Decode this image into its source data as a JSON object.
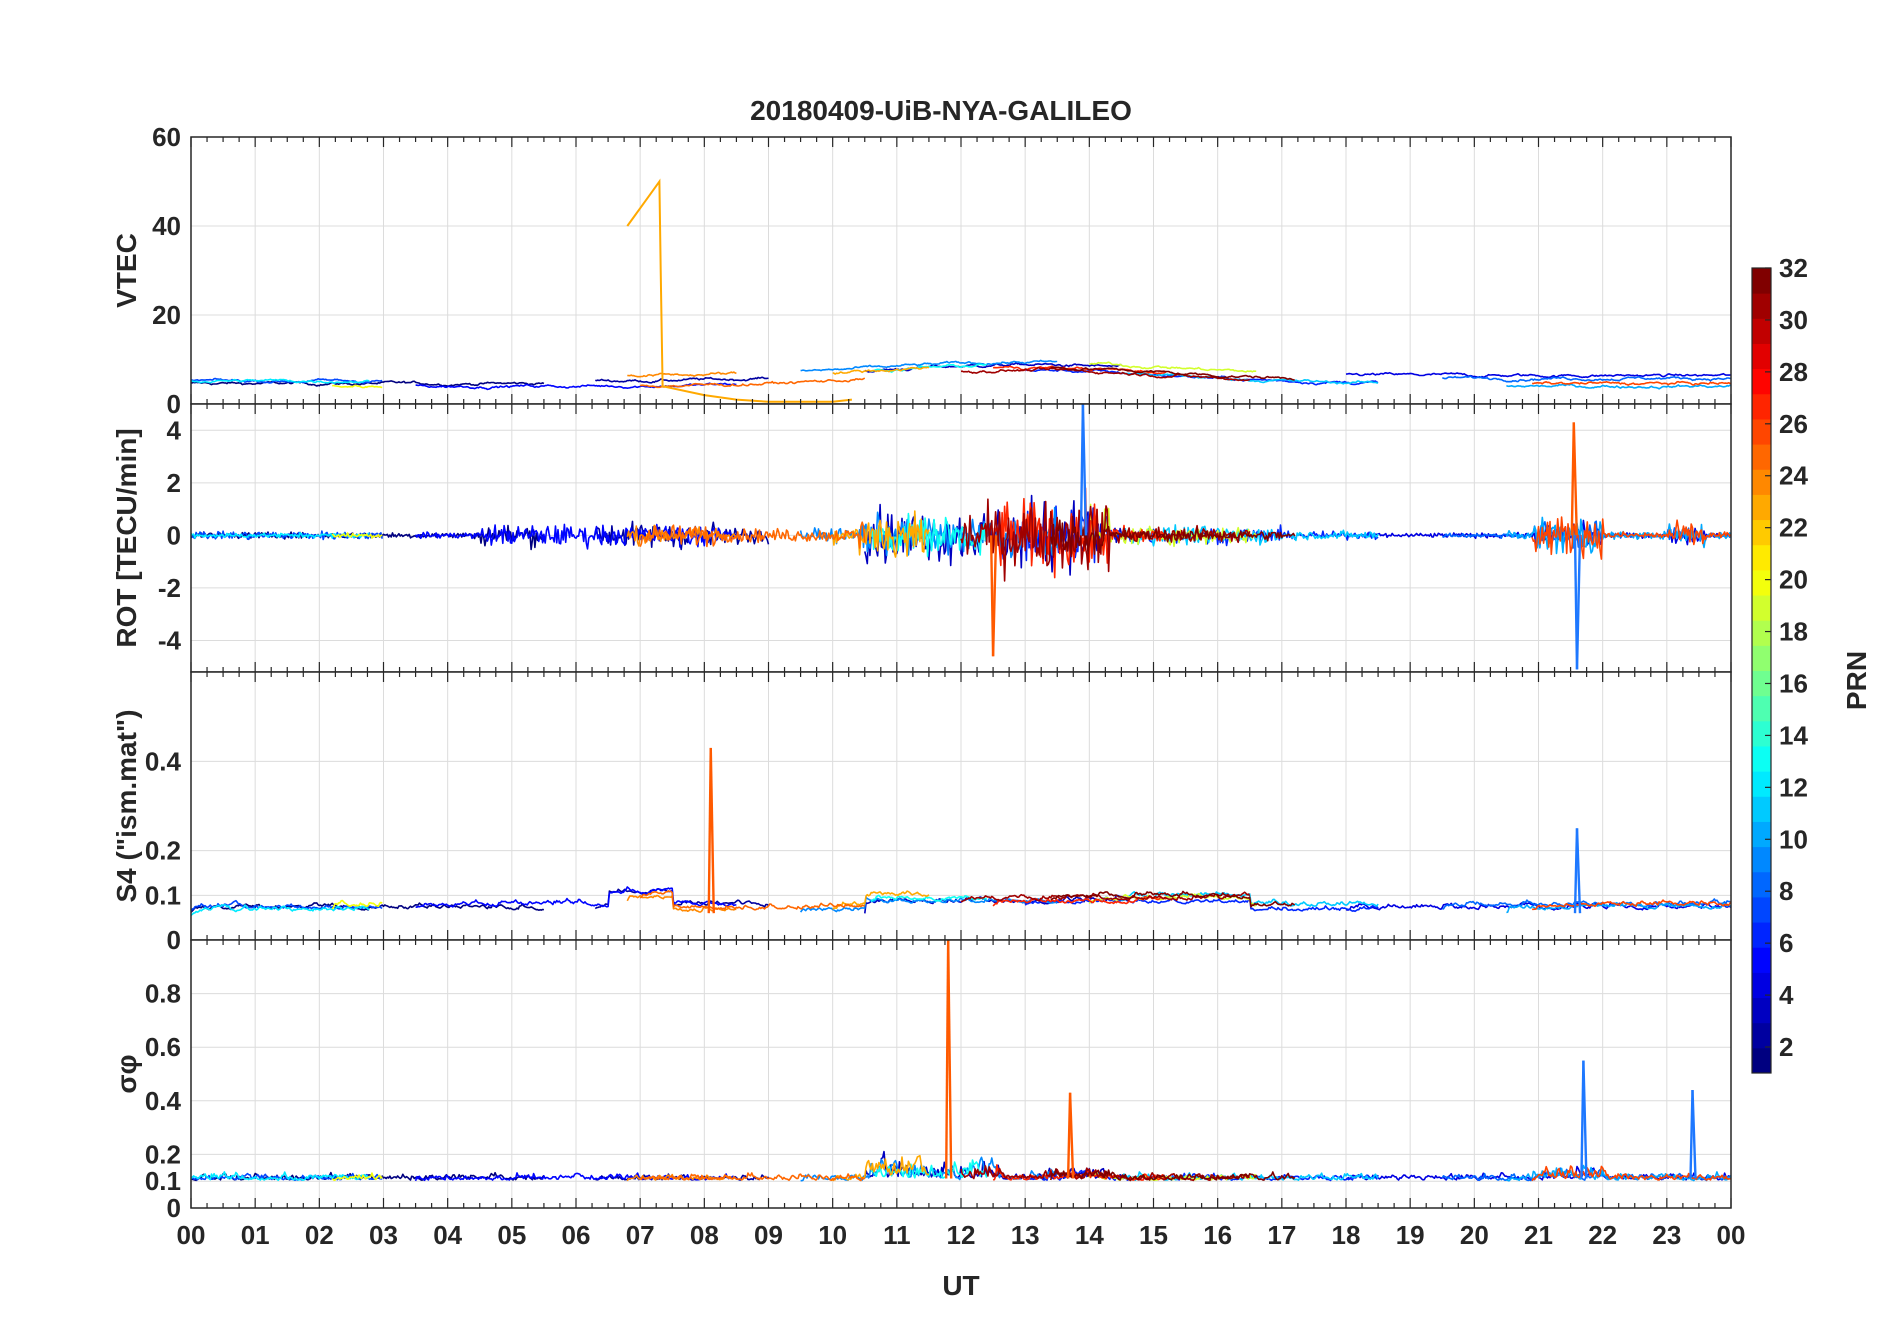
{
  "chart_data": {
    "type": "line",
    "title": "20180409-UiB-NYA-GALILEO",
    "xlabel": "UT",
    "x_ticks": [
      "00",
      "01",
      "02",
      "03",
      "04",
      "05",
      "06",
      "07",
      "08",
      "09",
      "10",
      "11",
      "12",
      "13",
      "14",
      "15",
      "16",
      "17",
      "18",
      "19",
      "20",
      "21",
      "22",
      "23",
      "00"
    ],
    "xlim_hours": [
      0,
      24
    ],
    "grid": true,
    "panels": [
      {
        "id": "vtec",
        "ylabel": "VTEC",
        "ylim": [
          0,
          60
        ],
        "y_ticks": [
          "0",
          "20",
          "40",
          "60"
        ],
        "notable_trace": {
          "prn": 23,
          "x_hours": [
            6.8,
            7.0,
            7.2,
            7.3,
            7.32,
            7.35,
            8.0,
            8.5,
            9.0,
            9.5,
            10.0,
            10.3
          ],
          "y": [
            40,
            44,
            48,
            50,
            30,
            4,
            2,
            1,
            0.5,
            0.5,
            0.5,
            1
          ]
        },
        "baseline_summary": "Most traces between 3 and 11 TECU across the day"
      },
      {
        "id": "rot",
        "ylabel": "ROT [TECU/min]",
        "ylim": [
          -5.2,
          5
        ],
        "y_ticks": [
          "-4",
          "-2",
          "0",
          "2",
          "4"
        ],
        "peaks": [
          {
            "x_hours": 12.5,
            "y": -4.6
          },
          {
            "x_hours": 13.9,
            "y": 5.0
          },
          {
            "x_hours": 21.55,
            "y": 4.3
          },
          {
            "x_hours": 21.6,
            "y": -5.1
          }
        ]
      },
      {
        "id": "s4",
        "ylabel": "S4 (\"ism.mat\")",
        "ylim": [
          0,
          0.6
        ],
        "y_ticks": [
          "0",
          "0.1",
          "0.2",
          "0.4"
        ],
        "peaks": [
          {
            "x_hours": 8.1,
            "y": 0.43
          },
          {
            "x_hours": 21.6,
            "y": 0.25
          }
        ]
      },
      {
        "id": "sigma_phi",
        "ylabel": "σφ",
        "ylim": [
          0,
          1
        ],
        "y_ticks": [
          "0",
          "0.1",
          "0.2",
          "0.4",
          "0.6",
          "0.8"
        ],
        "peaks": [
          {
            "x_hours": 11.8,
            "y": 1.0
          },
          {
            "x_hours": 21.7,
            "y": 0.55
          },
          {
            "x_hours": 13.7,
            "y": 0.43
          },
          {
            "x_hours": 23.4,
            "y": 0.44
          }
        ]
      }
    ],
    "colorbar": {
      "label": "PRN",
      "range": [
        1,
        32
      ],
      "ticks": [
        "2",
        "4",
        "6",
        "8",
        "10",
        "12",
        "14",
        "16",
        "18",
        "20",
        "22",
        "24",
        "26",
        "28",
        "30",
        "32"
      ],
      "colormap": "jet"
    }
  }
}
